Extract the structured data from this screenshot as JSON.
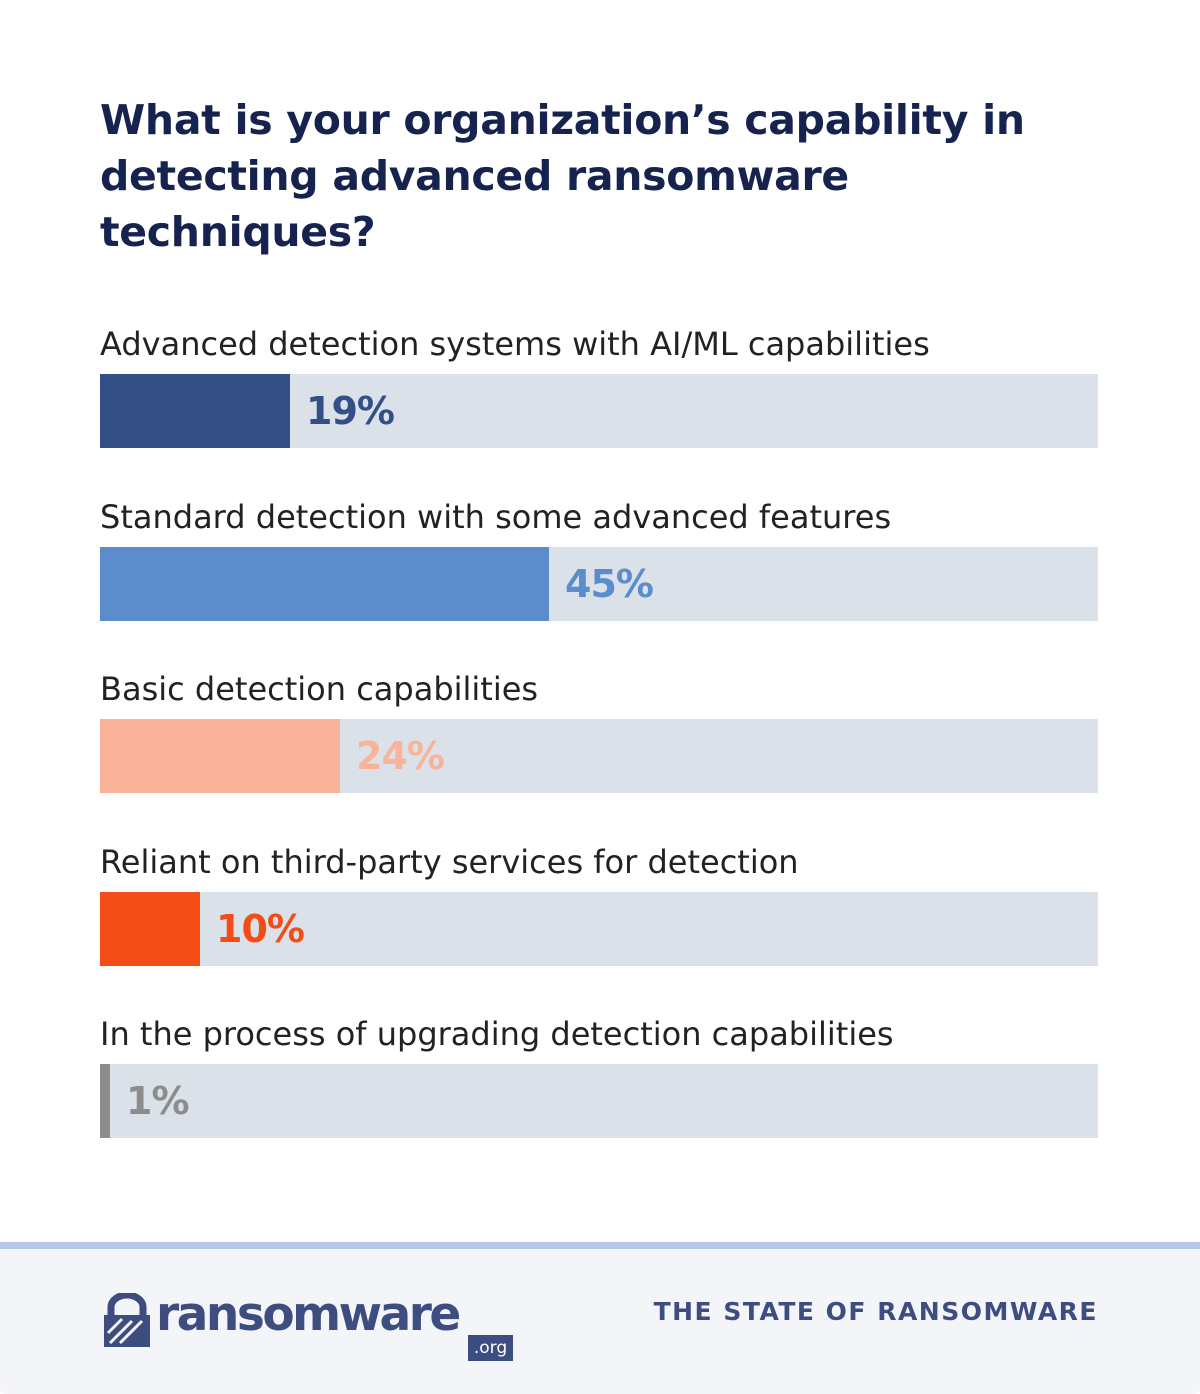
{
  "title": "What is your organization’s capability in detecting advanced ransomware techniques?",
  "chart_data": {
    "type": "bar",
    "orientation": "horizontal",
    "title": "What is your organization’s capability in detecting advanced ransomware techniques?",
    "categories": [
      "Advanced detection systems with AI/ML capabilities",
      "Standard detection with some advanced features",
      "Basic detection capabilities",
      "Reliant on third-party services for detection",
      "In the process of upgrading detection capabilities"
    ],
    "values": [
      19,
      45,
      24,
      10,
      1
    ],
    "value_labels": [
      "19%",
      "45%",
      "24%",
      "10%",
      "1%"
    ],
    "colors": [
      "#334f86",
      "#5b8ccc",
      "#f9b39b",
      "#f44c16",
      "#8c8c8c"
    ],
    "track_color": "#dae1e8",
    "unit": "%",
    "xlim": [
      0,
      100
    ],
    "grid": false,
    "legend": "none"
  },
  "footer": {
    "brand": "ransomware",
    "brand_suffix": ".org",
    "tagline": "THE STATE OF RANSOMWARE",
    "accent_color": "#3d4d7f"
  }
}
